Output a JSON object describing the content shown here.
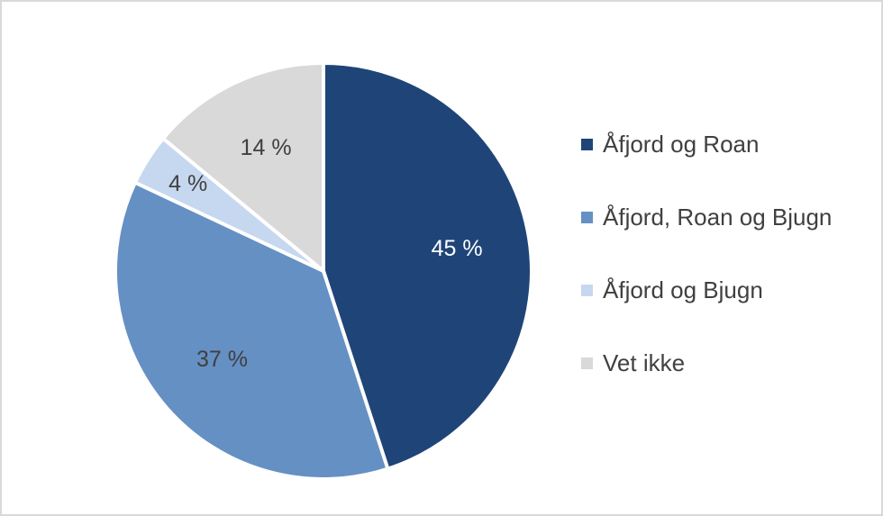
{
  "chart_data": {
    "type": "pie",
    "categories": [
      "Åfjord og Roan",
      "Åfjord, Roan og Bjugn",
      "Åfjord og Bjugn",
      "Vet ikke"
    ],
    "values": [
      45,
      37,
      4,
      14
    ],
    "data_labels": [
      "45 %",
      "37 %",
      "4 %",
      "14 %"
    ],
    "colors": [
      "#1f4578",
      "#6590c4",
      "#c6d8ef",
      "#d9d9d9"
    ],
    "label_colors": [
      "#ffffff",
      "#404040",
      "#404040",
      "#404040"
    ],
    "start_angle_deg": 0,
    "direction": "clockwise",
    "legend_position": "right"
  },
  "legend": {
    "items": [
      {
        "label": "Åfjord og Roan",
        "color": "#1f4578"
      },
      {
        "label": "Åfjord, Roan og Bjugn",
        "color": "#6590c4"
      },
      {
        "label": "Åfjord og Bjugn",
        "color": "#c6d8ef"
      },
      {
        "label": "Vet ikke",
        "color": "#d9d9d9"
      }
    ]
  }
}
